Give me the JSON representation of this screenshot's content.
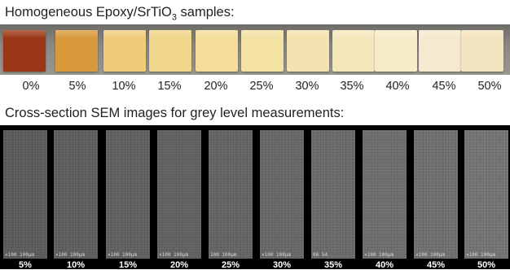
{
  "title1": {
    "text": "Homogeneous Epoxy/SrTiO",
    "sub": "3",
    "tail": " samples:"
  },
  "title2": "Cross-section SEM images for grey level measurements:",
  "samples": [
    {
      "label": "0%",
      "color": "#9a3616"
    },
    {
      "label": "5%",
      "color": "#d99a3c"
    },
    {
      "label": "10%",
      "color": "#eecc7a"
    },
    {
      "label": "15%",
      "color": "#f0d68a"
    },
    {
      "label": "20%",
      "color": "#f3dd98"
    },
    {
      "label": "25%",
      "color": "#f4e1a4"
    },
    {
      "label": "30%",
      "color": "#f4e3b0"
    },
    {
      "label": "35%",
      "color": "#f5e7bc"
    },
    {
      "label": "40%",
      "color": "#f6ecc8"
    },
    {
      "label": "45%",
      "color": "#f5ead0"
    },
    {
      "label": "50%",
      "color": "#f4e3bf"
    }
  ],
  "sem": [
    {
      "label": "5%",
      "scale": "×100 100μm",
      "tone": "#5b5b5b"
    },
    {
      "label": "10%",
      "scale": "×100 100μm",
      "tone": "#5e5e5e"
    },
    {
      "label": "15%",
      "scale": "×100 100μm",
      "tone": "#606060"
    },
    {
      "label": "20%",
      "scale": "×100 100μm",
      "tone": "#616161"
    },
    {
      "label": "25%",
      "scale": "100 100μm",
      "tone": "#646464"
    },
    {
      "label": "30%",
      "scale": "×100 100μm",
      "tone": "#676767"
    },
    {
      "label": "35%",
      "scale": "06 54",
      "tone": "#6a6a6a"
    },
    {
      "label": "40%",
      "scale": "×100 100μm",
      "tone": "#6d6d6d"
    },
    {
      "label": "45%",
      "scale": "×100 100μm",
      "tone": "#6f6f6f"
    },
    {
      "label": "50%",
      "scale": "×100 100μm",
      "tone": "#737373"
    }
  ]
}
